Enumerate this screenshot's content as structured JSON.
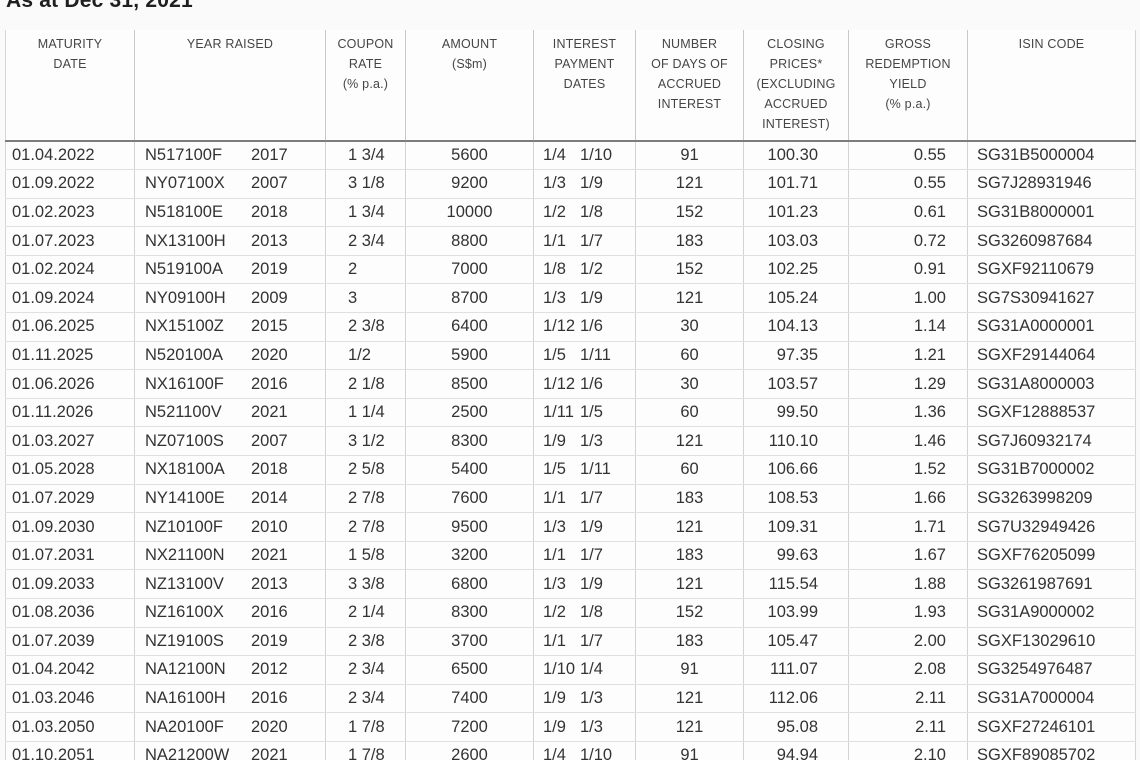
{
  "title": "As at Dec 31, 2021",
  "table": {
    "columns": [
      {
        "field": "maturity",
        "label": "MATURITY\nDATE"
      },
      {
        "field": "year",
        "label": "YEAR RAISED"
      },
      {
        "field": "coupon",
        "label": "COUPON\nRATE\n(% p.a.)"
      },
      {
        "field": "amount",
        "label": "AMOUNT\n(S$m)"
      },
      {
        "field": "pay",
        "label": "INTEREST\nPAYMENT\nDATES"
      },
      {
        "field": "days",
        "label": "NUMBER\nOF DAYS OF\nACCRUED\nINTEREST"
      },
      {
        "field": "price",
        "label": "CLOSING\nPRICES*\n(EXCLUDING\nACCRUED\nINTEREST)"
      },
      {
        "field": "yield",
        "label": "GROSS\nREDEMPTION\nYIELD\n(% p.a.)"
      },
      {
        "field": "isin",
        "label": "ISIN CODE"
      }
    ],
    "rows": [
      {
        "maturity": "01.04.2022",
        "code": "N517100F",
        "year": "2017",
        "coupon": "1 3/4",
        "amount": "5600",
        "pay1": "1/4",
        "pay2": "1/10",
        "days": "91",
        "price": "100.30",
        "yield": "0.55",
        "isin": "SG31B5000004"
      },
      {
        "maturity": "01.09.2022",
        "code": "NY07100X",
        "year": "2007",
        "coupon": "3 1/8",
        "amount": "9200",
        "pay1": "1/3",
        "pay2": "1/9",
        "days": "121",
        "price": "101.71",
        "yield": "0.55",
        "isin": "SG7J28931946"
      },
      {
        "maturity": "01.02.2023",
        "code": "N518100E",
        "year": "2018",
        "coupon": "1 3/4",
        "amount": "10000",
        "pay1": "1/2",
        "pay2": "1/8",
        "days": "152",
        "price": "101.23",
        "yield": "0.61",
        "isin": "SG31B8000001"
      },
      {
        "maturity": "01.07.2023",
        "code": "NX13100H",
        "year": "2013",
        "coupon": "2 3/4",
        "amount": "8800",
        "pay1": "1/1",
        "pay2": "1/7",
        "days": "183",
        "price": "103.03",
        "yield": "0.72",
        "isin": "SG3260987684"
      },
      {
        "maturity": "01.02.2024",
        "code": "N519100A",
        "year": "2019",
        "coupon": "2",
        "amount": "7000",
        "pay1": "1/8",
        "pay2": "1/2",
        "days": "152",
        "price": "102.25",
        "yield": "0.91",
        "isin": "SGXF92110679"
      },
      {
        "maturity": "01.09.2024",
        "code": "NY09100H",
        "year": "2009",
        "coupon": "3",
        "amount": "8700",
        "pay1": "1/3",
        "pay2": "1/9",
        "days": "121",
        "price": "105.24",
        "yield": "1.00",
        "isin": "SG7S30941627"
      },
      {
        "maturity": "01.06.2025",
        "code": "NX15100Z",
        "year": "2015",
        "coupon": "2 3/8",
        "amount": "6400",
        "pay1": "1/12",
        "pay2": "1/6",
        "days": "30",
        "price": "104.13",
        "yield": "1.14",
        "isin": "SG31A0000001"
      },
      {
        "maturity": "01.11.2025",
        "code": "N520100A",
        "year": "2020",
        "coupon": "1/2",
        "amount": "5900",
        "pay1": "1/5",
        "pay2": "1/11",
        "days": "60",
        "price": "97.35",
        "yield": "1.21",
        "isin": "SGXF29144064"
      },
      {
        "maturity": "01.06.2026",
        "code": "NX16100F",
        "year": "2016",
        "coupon": "2 1/8",
        "amount": "8500",
        "pay1": "1/12",
        "pay2": "1/6",
        "days": "30",
        "price": "103.57",
        "yield": "1.29",
        "isin": "SG31A8000003"
      },
      {
        "maturity": "01.11.2026",
        "code": "N521100V",
        "year": "2021",
        "coupon": "1 1/4",
        "amount": "2500",
        "pay1": "1/11",
        "pay2": "1/5",
        "days": "60",
        "price": "99.50",
        "yield": "1.36",
        "isin": "SGXF12888537"
      },
      {
        "maturity": "01.03.2027",
        "code": "NZ07100S",
        "year": "2007",
        "coupon": "3 1/2",
        "amount": "8300",
        "pay1": "1/9",
        "pay2": "1/3",
        "days": "121",
        "price": "110.10",
        "yield": "1.46",
        "isin": "SG7J60932174"
      },
      {
        "maturity": "01.05.2028",
        "code": "NX18100A",
        "year": "2018",
        "coupon": "2 5/8",
        "amount": "5400",
        "pay1": "1/5",
        "pay2": "1/11",
        "days": "60",
        "price": "106.66",
        "yield": "1.52",
        "isin": "SG31B7000002"
      },
      {
        "maturity": "01.07.2029",
        "code": "NY14100E",
        "year": "2014",
        "coupon": "2 7/8",
        "amount": "7600",
        "pay1": "1/1",
        "pay2": "1/7",
        "days": "183",
        "price": "108.53",
        "yield": "1.66",
        "isin": "SG3263998209"
      },
      {
        "maturity": "01.09.2030",
        "code": "NZ10100F",
        "year": "2010",
        "coupon": "2 7/8",
        "amount": "9500",
        "pay1": "1/3",
        "pay2": "1/9",
        "days": "121",
        "price": "109.31",
        "yield": "1.71",
        "isin": "SG7U32949426"
      },
      {
        "maturity": "01.07.2031",
        "code": "NX21100N",
        "year": "2021",
        "coupon": "1 5/8",
        "amount": "3200",
        "pay1": "1/1",
        "pay2": "1/7",
        "days": "183",
        "price": "99.63",
        "yield": "1.67",
        "isin": "SGXF76205099"
      },
      {
        "maturity": "01.09.2033",
        "code": "NZ13100V",
        "year": "2013",
        "coupon": "3 3/8",
        "amount": "6800",
        "pay1": "1/3",
        "pay2": "1/9",
        "days": "121",
        "price": "115.54",
        "yield": "1.88",
        "isin": "SG3261987691"
      },
      {
        "maturity": "01.08.2036",
        "code": "NZ16100X",
        "year": "2016",
        "coupon": "2 1/4",
        "amount": "8300",
        "pay1": "1/2",
        "pay2": "1/8",
        "days": "152",
        "price": "103.99",
        "yield": "1.93",
        "isin": "SG31A9000002"
      },
      {
        "maturity": "01.07.2039",
        "code": "NZ19100S",
        "year": "2019",
        "coupon": "2 3/8",
        "amount": "3700",
        "pay1": "1/1",
        "pay2": "1/7",
        "days": "183",
        "price": "105.47",
        "yield": "2.00",
        "isin": "SGXF13029610"
      },
      {
        "maturity": "01.04.2042",
        "code": "NA12100N",
        "year": "2012",
        "coupon": "2 3/4",
        "amount": "6500",
        "pay1": "1/10",
        "pay2": "1/4",
        "days": "91",
        "price": "111.07",
        "yield": "2.08",
        "isin": "SG3254976487"
      },
      {
        "maturity": "01.03.2046",
        "code": "NA16100H",
        "year": "2016",
        "coupon": "2 3/4",
        "amount": "7400",
        "pay1": "1/9",
        "pay2": "1/3",
        "days": "121",
        "price": "112.06",
        "yield": "2.11",
        "isin": "SG31A7000004"
      },
      {
        "maturity": "01.03.2050",
        "code": "NA20100F",
        "year": "2020",
        "coupon": "1 7/8",
        "amount": "7200",
        "pay1": "1/9",
        "pay2": "1/3",
        "days": "121",
        "price": "95.08",
        "yield": "2.11",
        "isin": "SGXF27246101"
      },
      {
        "maturity": "01.10.2051",
        "code": "NA21200W",
        "year": "2021",
        "coupon": "1 7/8",
        "amount": "2600",
        "pay1": "1/4",
        "pay2": "1/10",
        "days": "91",
        "price": "94.94",
        "yield": "2.10",
        "isin": "SGXF89085702"
      }
    ]
  }
}
